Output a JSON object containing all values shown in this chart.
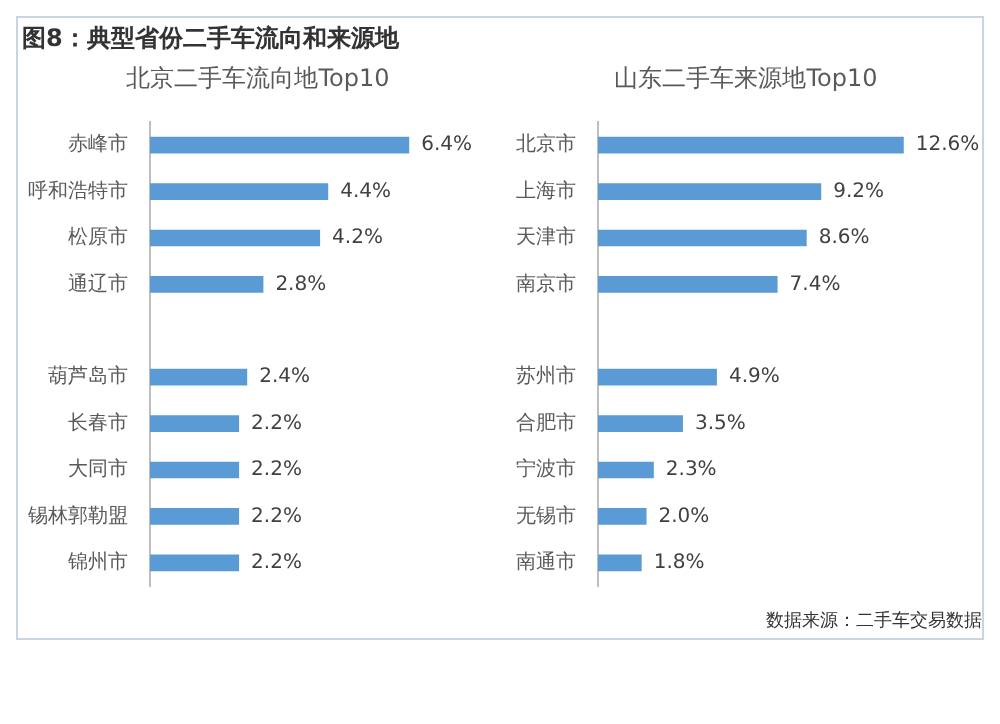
{
  "chart_data": [
    {
      "type": "bar",
      "orientation": "horizontal",
      "title": "北京二手车流向地Top10",
      "annotations": [
        "图8：典型省份二手车流向和来源地"
      ],
      "categories": [
        "赤峰市",
        "呼和浩特市",
        "松原市",
        "通辽市",
        null,
        "葫芦岛市",
        "长春市",
        "大同市",
        "锡林郭勒盟",
        "锦州市"
      ],
      "values": [
        6.4,
        4.4,
        4.2,
        2.8,
        null,
        2.4,
        2.2,
        2.2,
        2.2,
        2.2
      ],
      "value_labels": [
        "6.4%",
        "4.4%",
        "4.2%",
        "2.8%",
        null,
        "2.4%",
        "2.2%",
        "2.2%",
        "2.2%",
        "2.2%"
      ],
      "color": "#5b9bd5",
      "legend": false,
      "tick_labels": "y"
    },
    {
      "type": "bar",
      "orientation": "horizontal",
      "title": "山东二手车来源地Top10",
      "annotations": [
        "数据来源：二手车交易数据"
      ],
      "categories": [
        "北京市",
        "上海市",
        "天津市",
        "南京市",
        null,
        "苏州市",
        "合肥市",
        "宁波市",
        "无锡市",
        "南通市"
      ],
      "values": [
        12.6,
        9.2,
        8.6,
        7.4,
        null,
        4.9,
        3.5,
        2.3,
        2.0,
        1.8
      ],
      "value_labels": [
        "12.6%",
        "9.2%",
        "8.6%",
        "7.4%",
        null,
        "4.9%",
        "3.5%",
        "2.3%",
        "2.0%",
        "1.8%"
      ],
      "color": "#5b9bd5",
      "legend": false,
      "tick_labels": "y"
    }
  ]
}
